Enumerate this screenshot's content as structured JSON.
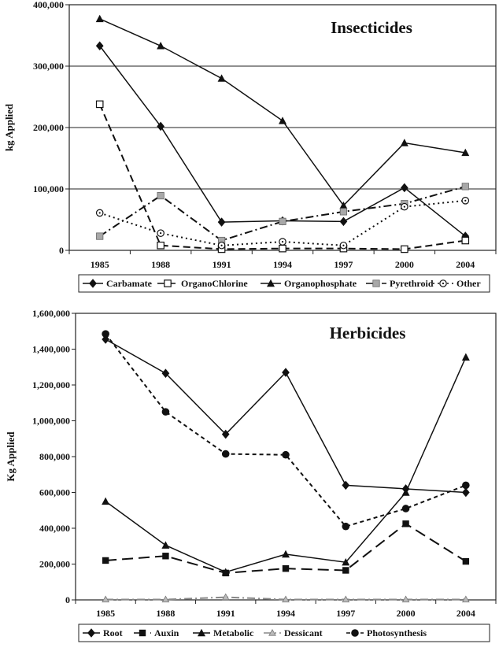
{
  "chart_data": [
    {
      "type": "line",
      "title": "Insecticides",
      "ylabel": "kg Applied",
      "xlabel": "",
      "categories": [
        "1985",
        "1988",
        "1991",
        "1994",
        "1997",
        "2000",
        "2004"
      ],
      "ylim": [
        0,
        400000
      ],
      "yticks": [
        0,
        100000,
        200000,
        300000,
        400000
      ],
      "ytick_labels": [
        "0",
        "100,000",
        "200,000",
        "300,000",
        "400,000"
      ],
      "grid": true,
      "legend": "bottom",
      "series": [
        {
          "name": "Carbamate",
          "values": [
            333000,
            202000,
            46000,
            48000,
            47000,
            102000,
            23000
          ],
          "color": "#111111",
          "marker": "diamond",
          "dash": "solid"
        },
        {
          "name": "OrganoChlorine",
          "values": [
            238000,
            8000,
            2000,
            3000,
            3000,
            2000,
            16000
          ],
          "color": "#111111",
          "marker": "square-open",
          "dash": "dash"
        },
        {
          "name": "Organophosphate",
          "values": [
            377000,
            333000,
            280000,
            211000,
            73000,
            175000,
            159000
          ],
          "color": "#111111",
          "marker": "triangle",
          "dash": "solid"
        },
        {
          "name": "Pyrethroid",
          "values": [
            23000,
            89000,
            16000,
            47000,
            63000,
            76000,
            104000
          ],
          "color": "#111111",
          "marker": "square-gray",
          "dash": "dashdot"
        },
        {
          "name": "Other",
          "values": [
            61000,
            28000,
            8000,
            14000,
            8000,
            71000,
            81000
          ],
          "color": "#111111",
          "marker": "circle-dot",
          "dash": "dot"
        }
      ]
    },
    {
      "type": "line",
      "title": "Herbicides",
      "ylabel": "Kg Applied",
      "xlabel": "",
      "categories": [
        "1985",
        "1988",
        "1991",
        "1994",
        "1997",
        "2000",
        "2004"
      ],
      "ylim": [
        0,
        1600000
      ],
      "yticks": [
        0,
        200000,
        400000,
        600000,
        800000,
        1000000,
        1200000,
        1400000,
        1600000
      ],
      "ytick_labels": [
        "0",
        "200,000",
        "400,000",
        "600,000",
        "800,000",
        "1,000,000",
        "1,200,000",
        "1,400,000",
        "1,600,000"
      ],
      "grid": false,
      "legend": "bottom",
      "series": [
        {
          "name": "Root",
          "values": [
            1455000,
            1265000,
            925000,
            1270000,
            640000,
            620000,
            600000
          ],
          "color": "#111111",
          "marker": "diamond",
          "dash": "solid"
        },
        {
          "name": "Auxin",
          "values": [
            220000,
            245000,
            150000,
            175000,
            165000,
            425000,
            215000
          ],
          "color": "#111111",
          "marker": "square",
          "dash": "longdash"
        },
        {
          "name": "Metabolic",
          "values": [
            550000,
            305000,
            155000,
            255000,
            210000,
            600000,
            1355000
          ],
          "color": "#111111",
          "marker": "triangle",
          "dash": "solid"
        },
        {
          "name": "Dessicant",
          "values": [
            2000,
            2000,
            15000,
            2000,
            2000,
            2000,
            2000
          ],
          "color": "#888888",
          "marker": "triangle-gray",
          "dash": "dashdot"
        },
        {
          "name": "Photosynthesis",
          "values": [
            1485000,
            1050000,
            815000,
            810000,
            410000,
            510000,
            640000
          ],
          "color": "#111111",
          "marker": "circle",
          "dash": "shortdash"
        }
      ]
    }
  ]
}
